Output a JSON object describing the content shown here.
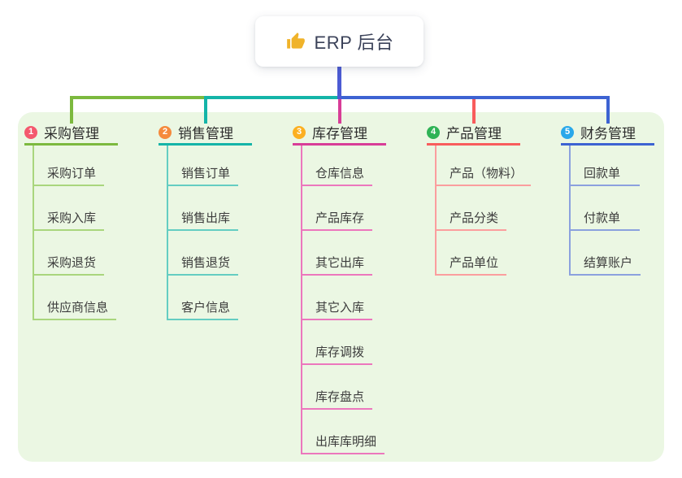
{
  "root": {
    "label": "ERP 后台",
    "icon": "thumbs-up-icon",
    "icon_color": "#f0b32a",
    "connector_color": "#4c5bd4"
  },
  "canvas": {
    "background_color": "#ffffff",
    "panel_color": "#ebf7e3"
  },
  "branches": [
    {
      "index": "1",
      "title": "采购管理",
      "badge_color": "#f4586e",
      "line_color": "#7cb93e",
      "child_line_color": "#a9d67d",
      "children": [
        "采购订单",
        "采购入库",
        "采购退货",
        "供应商信息"
      ]
    },
    {
      "index": "2",
      "title": "销售管理",
      "badge_color": "#f58a3c",
      "line_color": "#14b4a8",
      "child_line_color": "#64cdc2",
      "children": [
        "销售订单",
        "销售出库",
        "销售退货",
        "客户信息"
      ]
    },
    {
      "index": "3",
      "title": "库存管理",
      "badge_color": "#fcb021",
      "line_color": "#d83d97",
      "child_line_color": "#ec77bd",
      "children": [
        "仓库信息",
        "产品库存",
        "其它出库",
        "其它入库",
        "库存调拨",
        "库存盘点",
        "出库库明细"
      ]
    },
    {
      "index": "4",
      "title": "产品管理",
      "badge_color": "#2fb356",
      "line_color": "#f85c5c",
      "child_line_color": "#fb9e9e",
      "children": [
        "产品（物料）",
        "产品分类",
        "产品单位"
      ]
    },
    {
      "index": "5",
      "title": "财务管理",
      "badge_color": "#29a8ea",
      "line_color": "#3d63d2",
      "child_line_color": "#8ba1de",
      "children": [
        "回款单",
        "付款单",
        "结算账户"
      ]
    }
  ]
}
